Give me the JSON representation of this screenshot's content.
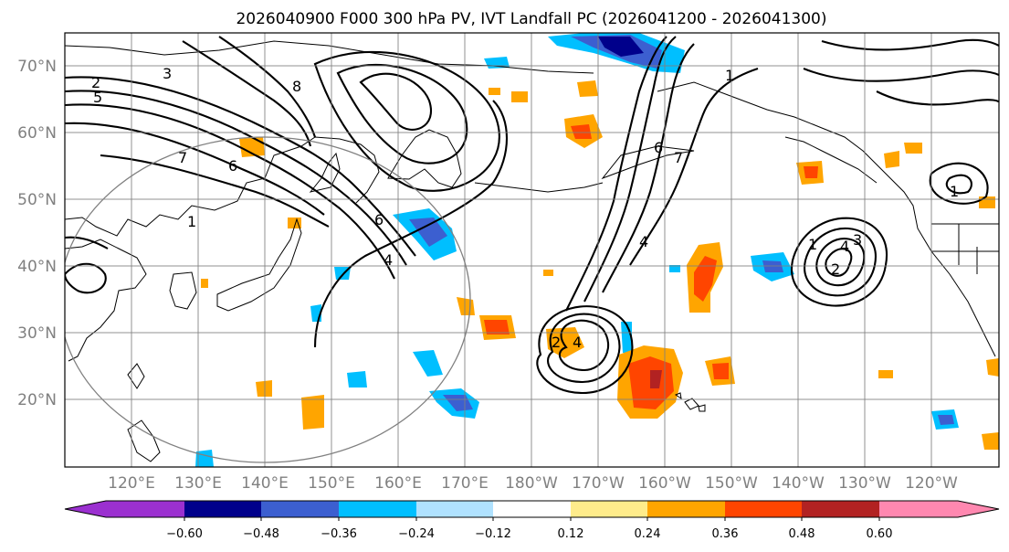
{
  "title": "2026040900 F000 300 hPa PV, IVT Landfall PC (2026041200 - 2026041300)",
  "lat_labels": [
    "70°N",
    "60°N",
    "50°N",
    "40°N",
    "30°N",
    "20°N"
  ],
  "lon_labels": [
    "120°E",
    "130°E",
    "140°E",
    "150°E",
    "160°E",
    "170°E",
    "180°W",
    "170°W",
    "160°W",
    "150°W",
    "140°W",
    "130°W",
    "120°W"
  ],
  "colorbar": {
    "tick_labels": [
      "−0.60",
      "−0.48",
      "−0.36",
      "−0.24",
      "−0.12",
      "0.12",
      "0.24",
      "0.36",
      "0.48",
      "0.60"
    ],
    "colors": [
      "#9b30d0",
      "#00008b",
      "#3c5fd0",
      "#00bfff",
      "#b0e2ff",
      "#ffffff",
      "#ffec8b",
      "#ffa500",
      "#ff4500",
      "#b22222",
      "#ff88b0"
    ]
  },
  "contour_labels": [
    {
      "text": "2"
    },
    {
      "text": "3"
    },
    {
      "text": "5"
    },
    {
      "text": "6"
    },
    {
      "text": "8"
    },
    {
      "text": "7"
    },
    {
      "text": "1"
    },
    {
      "text": "6"
    },
    {
      "text": "4"
    },
    {
      "text": "4"
    },
    {
      "text": "2"
    },
    {
      "text": "4"
    },
    {
      "text": "1"
    },
    {
      "text": "6"
    },
    {
      "text": "7"
    },
    {
      "text": "1"
    },
    {
      "text": "3"
    },
    {
      "text": "4"
    },
    {
      "text": "2"
    },
    {
      "text": "1"
    }
  ]
}
